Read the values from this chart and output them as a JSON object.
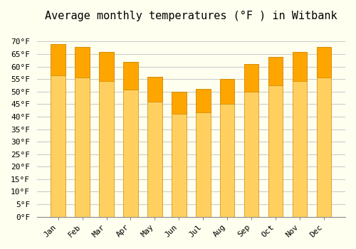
{
  "title": "Average monthly temperatures (°F ) in Witbank",
  "months": [
    "Jan",
    "Feb",
    "Mar",
    "Apr",
    "May",
    "Jun",
    "Jul",
    "Aug",
    "Sep",
    "Oct",
    "Nov",
    "Dec"
  ],
  "values": [
    69,
    68,
    66,
    62,
    56,
    50,
    51,
    55,
    61,
    64,
    66,
    68
  ],
  "bar_color_top": "#FFA500",
  "bar_color_bottom": "#FFD060",
  "ylim": [
    0,
    75
  ],
  "yticks": [
    0,
    5,
    10,
    15,
    20,
    25,
    30,
    35,
    40,
    45,
    50,
    55,
    60,
    65,
    70
  ],
  "ytick_labels": [
    "0°F",
    "5°F",
    "10°F",
    "15°F",
    "20°F",
    "25°F",
    "30°F",
    "35°F",
    "40°F",
    "45°F",
    "50°F",
    "55°F",
    "60°F",
    "65°F",
    "70°F"
  ],
  "background_color": "#FFFFF0",
  "grid_color": "#CCCCCC",
  "title_fontsize": 11,
  "tick_fontsize": 8,
  "bar_edge_color": "#CC8800",
  "bar_width": 0.6
}
